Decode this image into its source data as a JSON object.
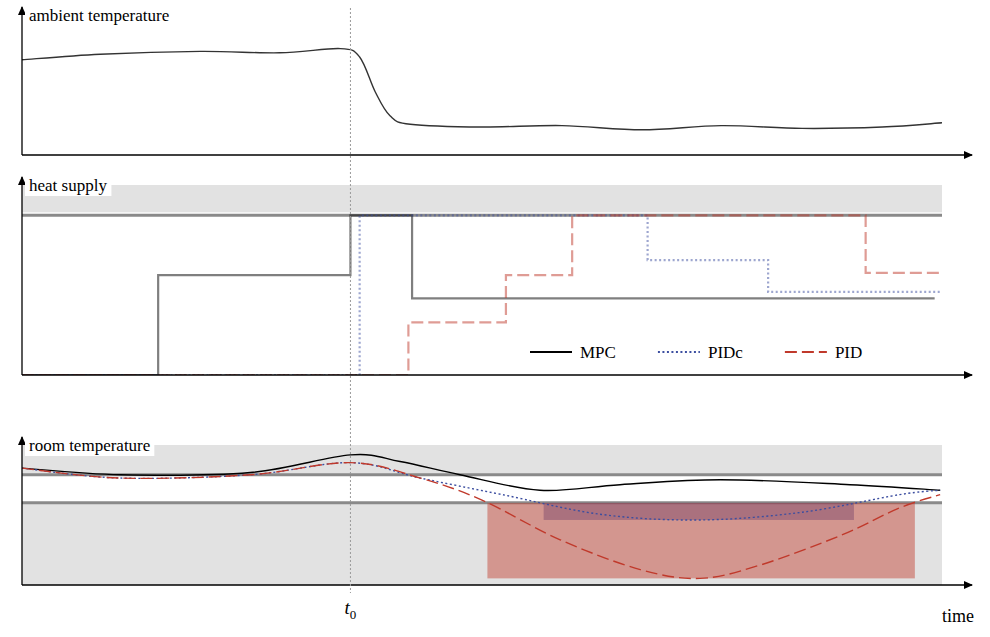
{
  "chart_data": [
    {
      "type": "line",
      "title": "ambient temperature",
      "x": [
        0,
        8.5,
        19.4,
        28,
        34.6,
        36.7,
        38.4,
        40,
        42.2,
        50,
        58.7,
        67.4,
        76,
        84.8,
        93.5,
        100
      ],
      "values": [
        68,
        72,
        74,
        73,
        76,
        70,
        45,
        28,
        22,
        20,
        21,
        18,
        21,
        19,
        20,
        23
      ],
      "color": "#333333",
      "xlim": [
        0,
        100
      ],
      "ylim": [
        0,
        100
      ],
      "tick_labels": false
    },
    {
      "type": "step",
      "title": "heat supply",
      "xlim": [
        0,
        100
      ],
      "ylim": [
        0,
        119
      ],
      "tick_labels": false,
      "bounds": [
        100
      ],
      "legend": "lower right",
      "series": [
        {
          "name": "MPC",
          "color": "#000000",
          "line_style": "solid",
          "x": [
            0,
            14.8,
            35.7,
            42.4,
            99.2
          ],
          "values": [
            0,
            62.5,
            100,
            48,
            48
          ]
        },
        {
          "name": "PIDc",
          "color": "#3c4ea0",
          "line_style": "dotted",
          "x": [
            0,
            36.7,
            68,
            81.1,
            100
          ],
          "values": [
            0,
            100,
            72,
            52,
            52
          ]
        },
        {
          "name": "PID",
          "color": "#c0392b",
          "line_style": "dashed",
          "x": [
            0,
            42,
            52.6,
            59.8,
            91.7,
            100
          ],
          "values": [
            0,
            33,
            62.5,
            100,
            64,
            64
          ]
        }
      ]
    },
    {
      "type": "line",
      "title": "room temperature",
      "xlim": [
        0,
        100
      ],
      "ylim": [
        0,
        127
      ],
      "tick_labels": false,
      "bounds": [
        74.5,
        100
      ],
      "x_label": "time",
      "annotations": [
        {
          "x": 35.7,
          "text": "t",
          "subscript": "0"
        }
      ],
      "series": [
        {
          "name": "MPC",
          "color": "#000000",
          "line_style": "solid",
          "x": [
            0,
            10.7,
            24.8,
            35.7,
            41.1,
            47.6,
            56.3,
            65,
            75.9,
            90,
            99.8
          ],
          "values": [
            106,
            100,
            102,
            118,
            112,
            100,
            86,
            91,
            95.5,
            91,
            86
          ]
        },
        {
          "name": "PIDc",
          "color": "#3c4ea0",
          "line_style": "dotted",
          "x": [
            0,
            10.7,
            24.8,
            35.7,
            43.3,
            52.2,
            63,
            73.7,
            84.8,
            95.4,
            99.8
          ],
          "values": [
            106,
            97,
            100,
            111,
            97,
            82,
            64,
            59,
            66,
            82,
            86
          ]
        },
        {
          "name": "PID",
          "color": "#c0392b",
          "line_style": "dashed",
          "x": [
            0,
            10.7,
            24.8,
            35.7,
            43.3,
            50,
            58.5,
            67.2,
            73.7,
            80.2,
            89,
            95.4,
            99.8
          ],
          "values": [
            106,
            97,
            100,
            111,
            97,
            77,
            41,
            14,
            6,
            18,
            45,
            70,
            82
          ]
        }
      ]
    }
  ]
}
